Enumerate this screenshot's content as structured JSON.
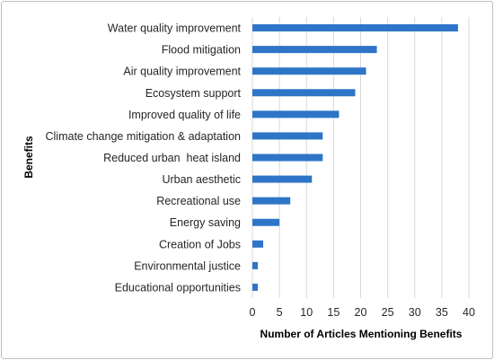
{
  "chart_data": {
    "type": "bar",
    "orientation": "horizontal",
    "categories": [
      "Water quality improvement",
      "Flood mitigation",
      "Air quality improvement",
      "Ecosystem support",
      "Improved quality of life",
      "Climate change mitigation & adaptation",
      "Reduced urban  heat island",
      "Urban aesthetic",
      "Recreational use",
      "Energy saving",
      "Creation of Jobs",
      "Environmental justice",
      "Educational opportunities"
    ],
    "values": [
      38,
      23,
      21,
      19,
      16,
      13,
      13,
      11,
      7,
      5,
      2,
      1,
      1
    ],
    "xlabel": "Number of Articles Mentioning Benefits",
    "ylabel": "Benefits",
    "xlim": [
      0,
      40
    ],
    "xticks": [
      0,
      5,
      10,
      15,
      20,
      25,
      30,
      35,
      40
    ],
    "grid": "vertical",
    "legend": "none",
    "colors": {
      "bar": "#2e75c8",
      "grid": "#d9d9d9"
    }
  }
}
